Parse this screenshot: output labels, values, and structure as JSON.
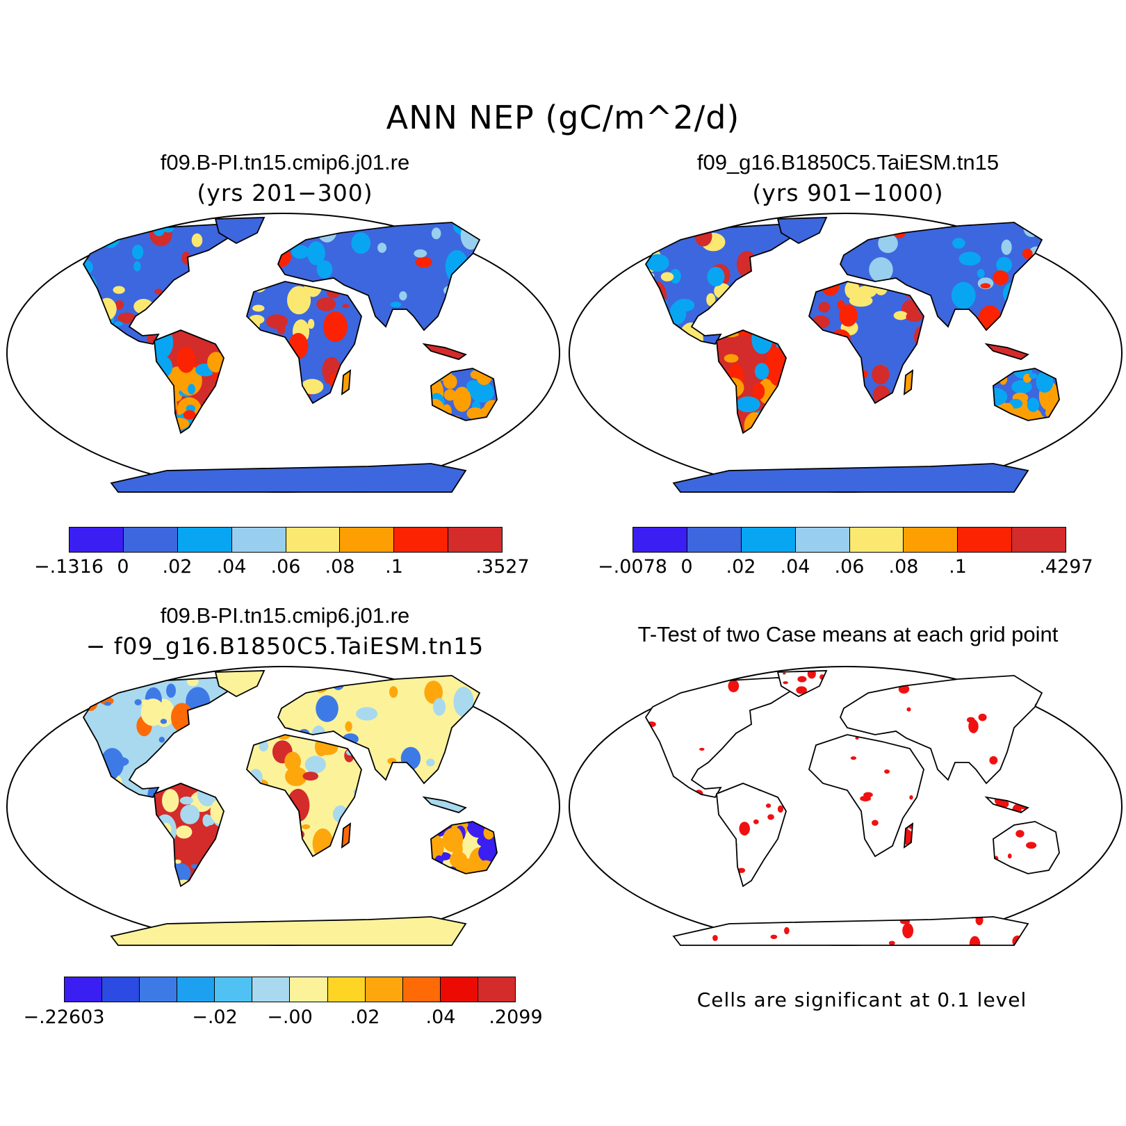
{
  "title": "ANN NEP (gC/m^2/d)",
  "panels": {
    "top_left": {
      "case": "f09.B-PI.tn15.cmip6.j01.re",
      "years": "(yrs 201−300)",
      "colorbar": {
        "colors": [
          "#3a1ef2",
          "#3d67de",
          "#08a6f2",
          "#99cfee",
          "#fbe870",
          "#fd9f02",
          "#fc2302",
          "#d42b2b"
        ],
        "tick_labels": [
          "−.1316",
          "0",
          "",
          ".02",
          ".04",
          ".06",
          ".08",
          ".1",
          ".3527"
        ]
      }
    },
    "top_right": {
      "case": "f09_g16.B1850C5.TaiESM.tn15",
      "years": "(yrs 901−1000)",
      "colorbar": {
        "colors": [
          "#3a1ef2",
          "#3d67de",
          "#08a6f2",
          "#99cfee",
          "#fbe870",
          "#fd9f02",
          "#fc2302",
          "#d42b2b"
        ],
        "tick_labels": [
          "−.0078",
          "0",
          "",
          ".02",
          ".04",
          ".06",
          ".08",
          ".1",
          ".4297"
        ]
      }
    },
    "bottom_left": {
      "case": "f09.B-PI.tn15.cmip6.j01.re",
      "minus_line": "− f09_g16.B1850C5.TaiESM.tn15",
      "colorbar": {
        "colors": [
          "#3a1ef2",
          "#2b4be2",
          "#3d7ae6",
          "#1ea0f0",
          "#4fc1f2",
          "#a8d9ee",
          "#fcf29a",
          "#fed524",
          "#fda70c",
          "#fd6a06",
          "#ec0b02",
          "#d42b2b"
        ],
        "tick_labels": [
          "−.22603",
          "−.02",
          "−.00",
          ".02",
          ".04",
          ".2099"
        ]
      }
    },
    "bottom_right": {
      "title": "T-Test of two Case means at each grid point",
      "note": "Cells are significant at 0.1 level",
      "significance_color": "#f01010"
    }
  },
  "map_colors": {
    "background": "#ffffff",
    "coast": "#000000",
    "cold_land": "#3d67de",
    "diff_land": "#fcf29a"
  },
  "icons": [
    "world-map-robinson"
  ]
}
